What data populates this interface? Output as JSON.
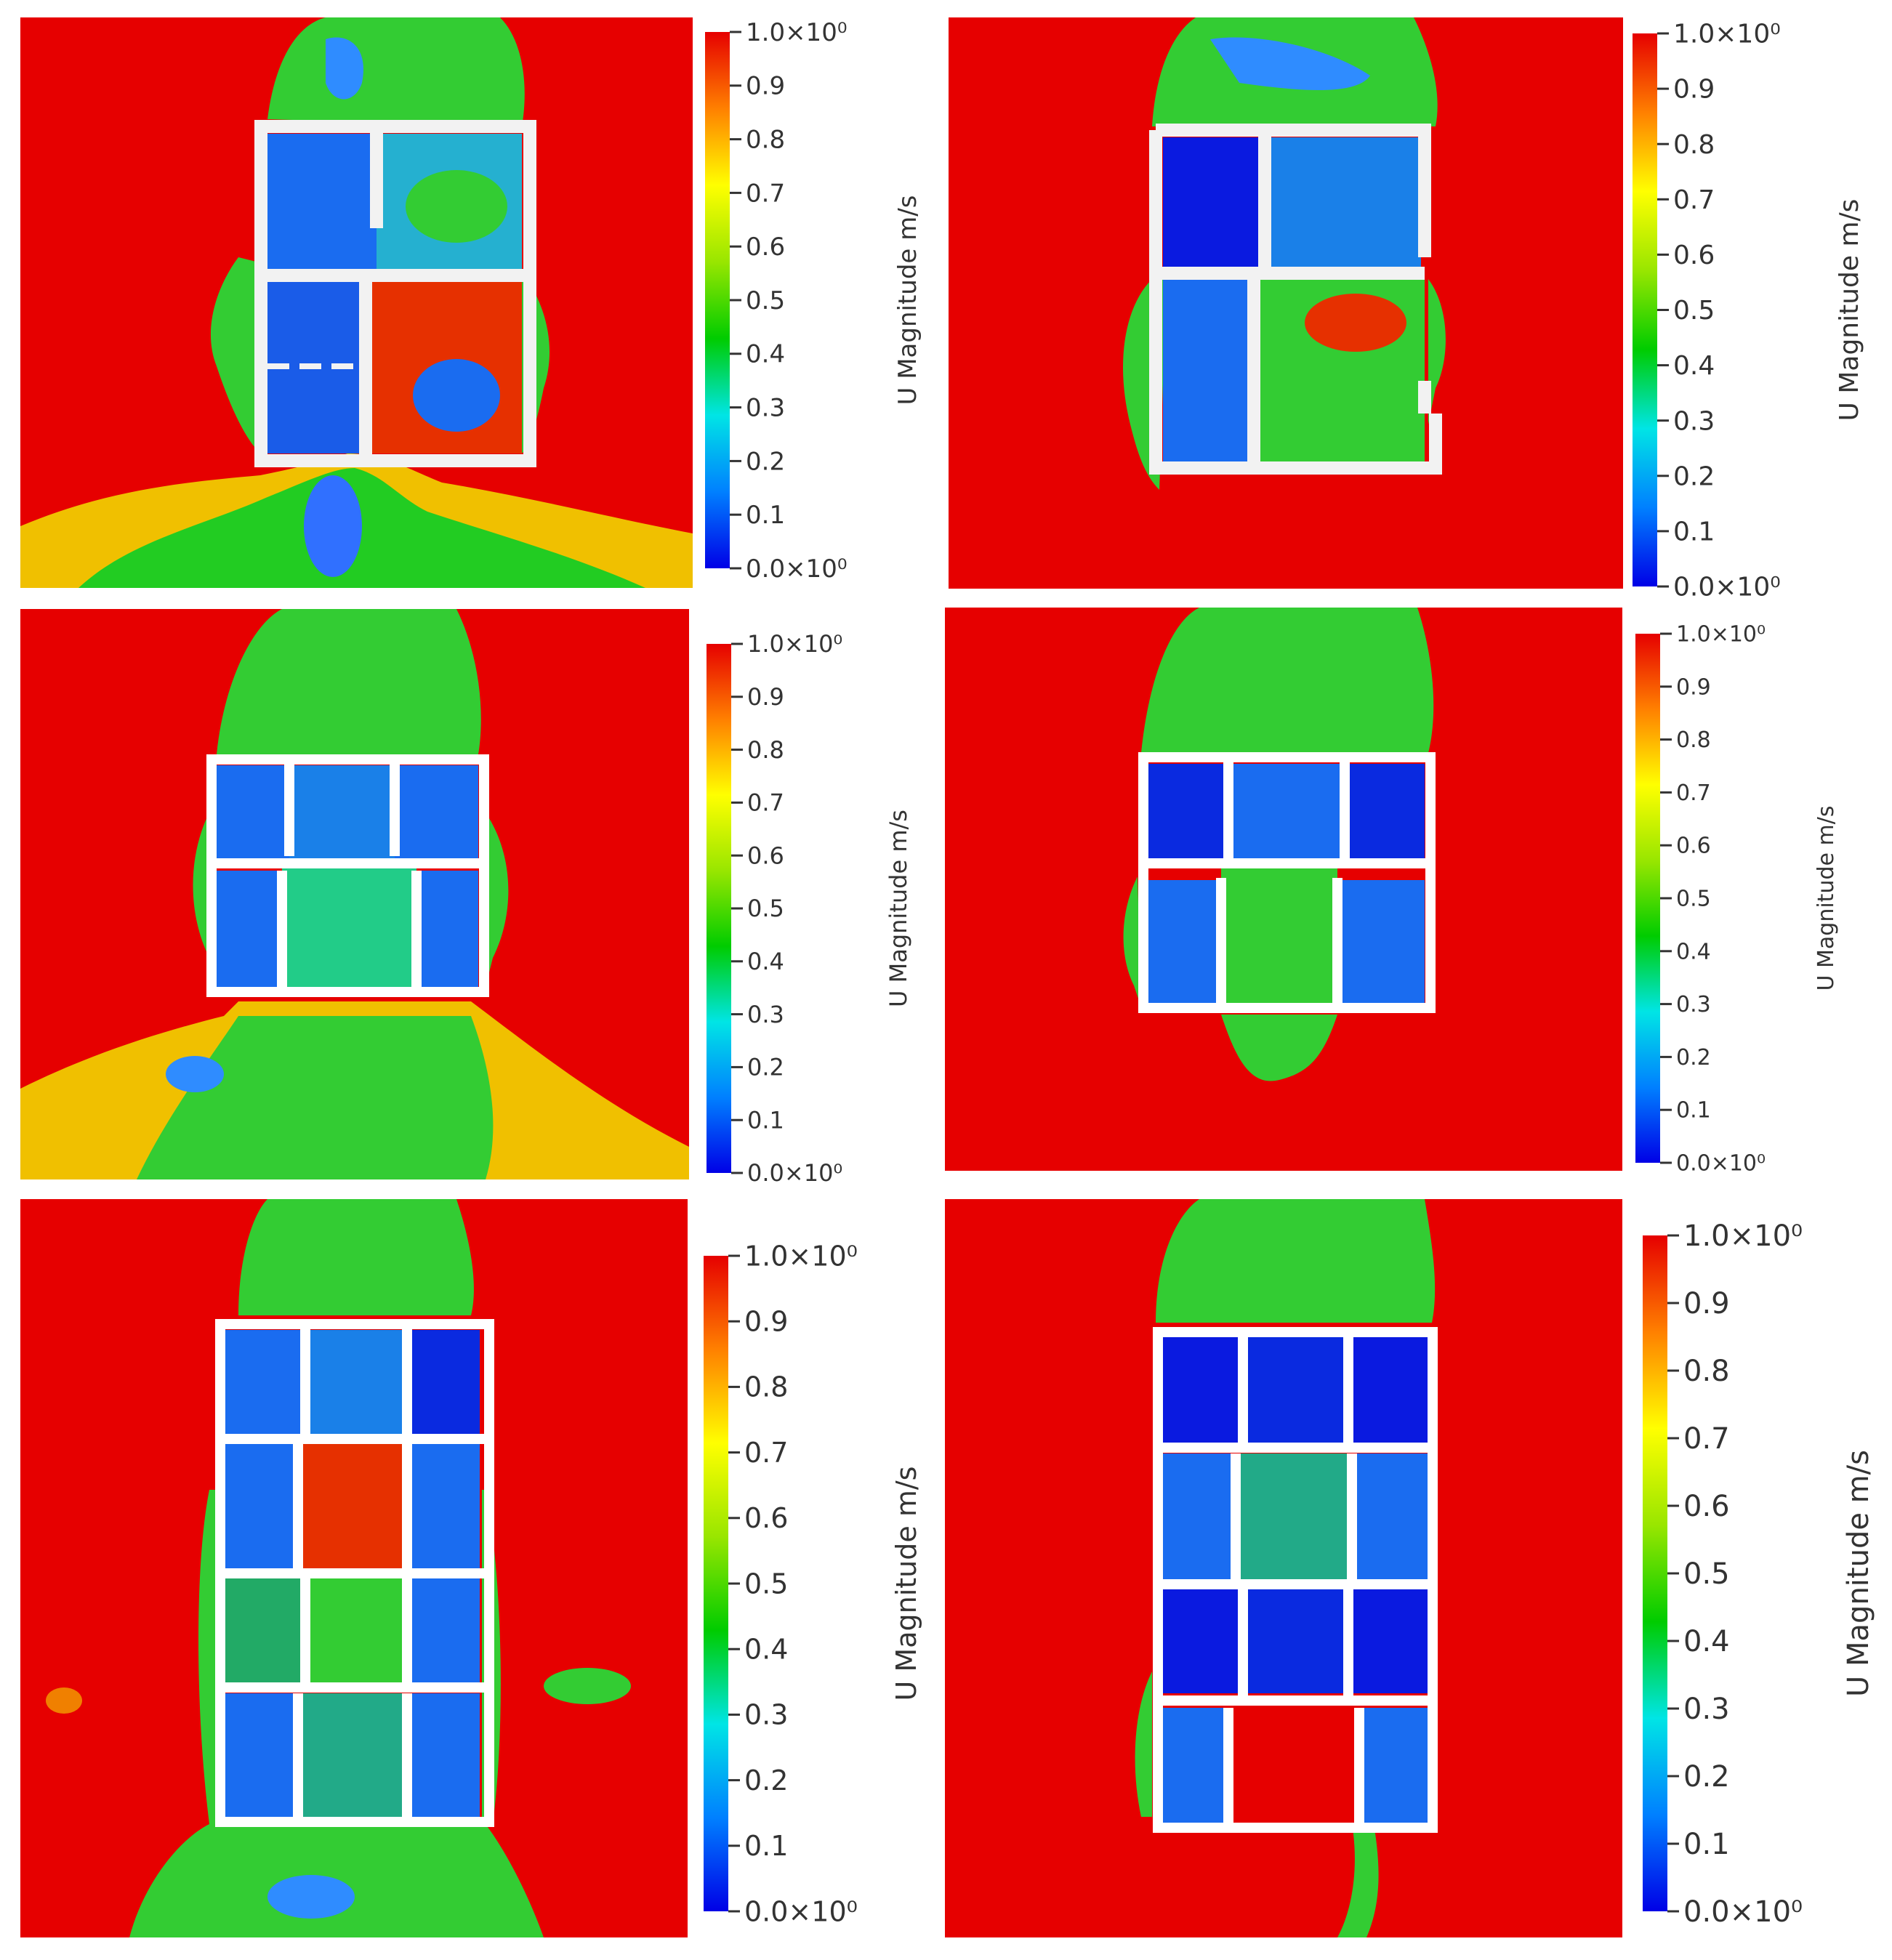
{
  "colors": {
    "background_field": "#e60000",
    "wall": "#f2f2f2",
    "colormap": [
      "#0000e6",
      "#0080ff",
      "#00e5e5",
      "#00cc00",
      "#99e600",
      "#ffff00",
      "#ff8000",
      "#e60000"
    ]
  },
  "colorbar_common": {
    "title": "U Magnitude  m/s",
    "ticks": [
      "0.0×10⁰",
      "0.1",
      "0.2",
      "0.3",
      "0.4",
      "0.5",
      "0.6",
      "0.7",
      "0.8",
      "0.9",
      "1.0×10⁰"
    ]
  },
  "chart_data": [
    {
      "type": "heatmap",
      "title": "",
      "colorbar_label": "U Magnitude  m/s",
      "colorbar_range": [
        0.0,
        1.0
      ],
      "colorbar_ticks": [
        0.0,
        0.1,
        0.2,
        0.3,
        0.4,
        0.5,
        0.6,
        0.7,
        0.8,
        0.9,
        1.0
      ],
      "plan": "two-row floor plan (top row 2 rooms, bottom row 2 rooms), entrance at bottom"
    },
    {
      "type": "heatmap",
      "title": "",
      "colorbar_label": "U Magnitude  m/s",
      "colorbar_range": [
        0.0,
        1.0
      ],
      "colorbar_ticks": [
        0.0,
        0.1,
        0.2,
        0.3,
        0.4,
        0.5,
        0.6,
        0.7,
        0.8,
        0.9,
        1.0
      ],
      "plan": "two-row floor plan, stepped right wall, entrance at bottom"
    },
    {
      "type": "heatmap",
      "title": "",
      "colorbar_label": "U Magnitude  m/s",
      "colorbar_range": [
        0.0,
        1.0
      ],
      "colorbar_ticks": [
        0.0,
        0.1,
        0.2,
        0.3,
        0.4,
        0.5,
        0.6,
        0.7,
        0.8,
        0.9,
        1.0
      ],
      "plan": "top row 3 rooms, bottom row 2 rooms with central corridor"
    },
    {
      "type": "heatmap",
      "title": "",
      "colorbar_label": "U Magnitude  m/s",
      "colorbar_range": [
        0.0,
        1.0
      ],
      "colorbar_ticks": [
        0.0,
        0.1,
        0.2,
        0.3,
        0.4,
        0.5,
        0.6,
        0.7,
        0.8,
        0.9,
        1.0
      ],
      "plan": "top row 3 rooms, bottom row 2 rooms with central corridor"
    },
    {
      "type": "heatmap",
      "title": "",
      "colorbar_label": "U Magnitude  m/s",
      "colorbar_range": [
        0.0,
        1.0
      ],
      "colorbar_ticks": [
        0.0,
        0.1,
        0.2,
        0.3,
        0.4,
        0.5,
        0.6,
        0.7,
        0.8,
        0.9,
        1.0
      ],
      "plan": "four-row floor plan, 3 rooms per row with central corridor"
    },
    {
      "type": "heatmap",
      "title": "",
      "colorbar_label": "U Magnitude  m/s",
      "colorbar_range": [
        0.0,
        1.0
      ],
      "colorbar_ticks": [
        0.0,
        0.1,
        0.2,
        0.3,
        0.4,
        0.5,
        0.6,
        0.7,
        0.8,
        0.9,
        1.0
      ],
      "plan": "four-row floor plan, 3 rooms per row with central corridor"
    }
  ]
}
